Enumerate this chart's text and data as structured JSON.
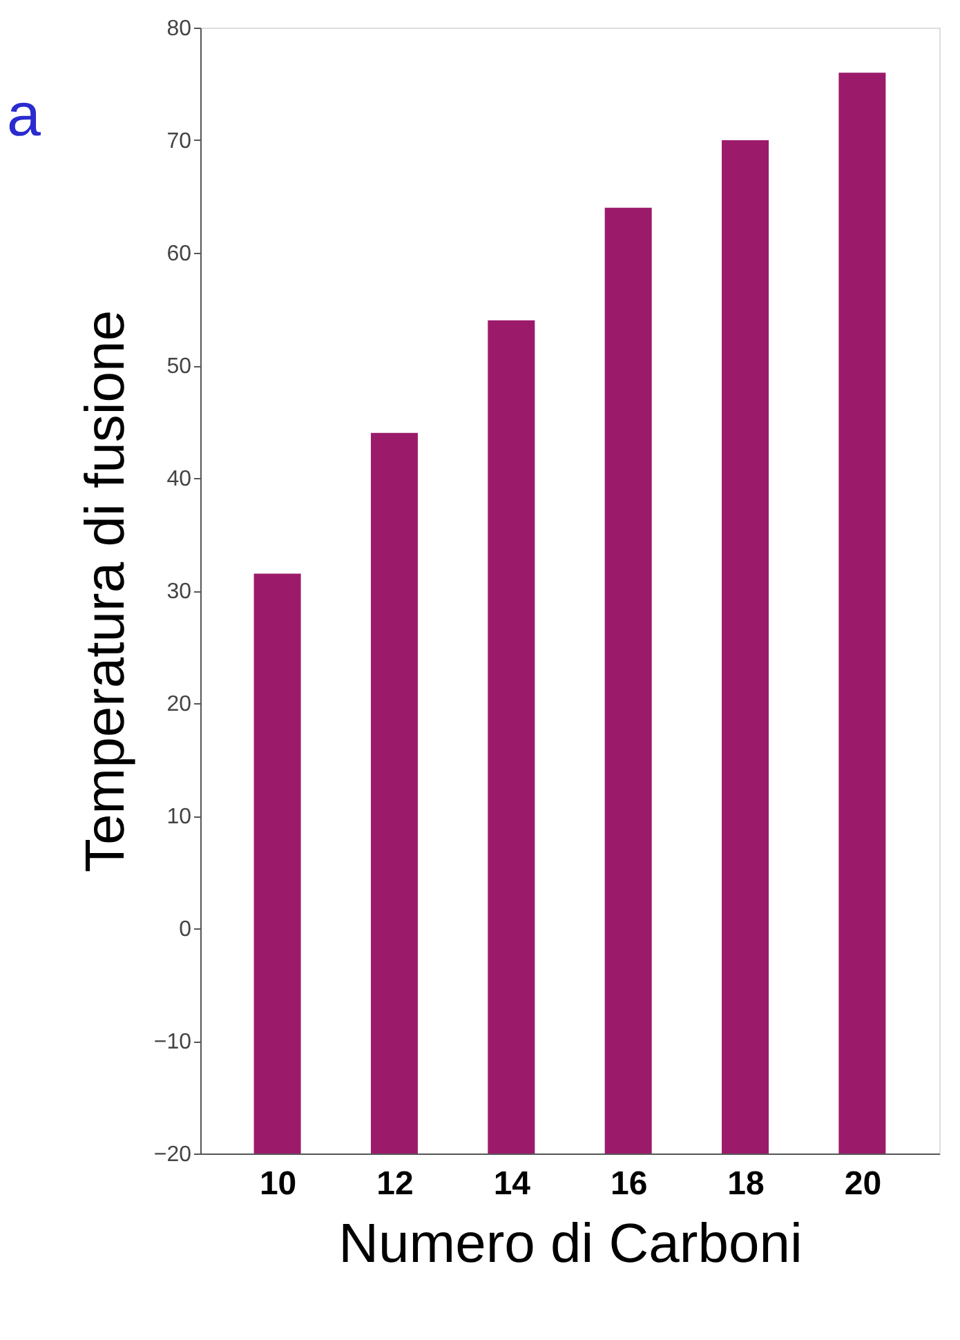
{
  "chart_data": {
    "type": "bar",
    "xlabel": "Numero di Carboni",
    "ylabel": "Temperatura di fusione",
    "annotations": [
      "a"
    ],
    "categories": [
      "10",
      "12",
      "14",
      "16",
      "18",
      "20"
    ],
    "base": [
      -20,
      -20,
      -20,
      -20,
      -20,
      -20
    ],
    "values": [
      51.5,
      64,
      74,
      84,
      90,
      96
    ],
    "color": "#9b1b6a",
    "ylim": [
      -20,
      80
    ],
    "yticks": [
      -20,
      -10,
      0,
      10,
      20,
      30,
      40,
      50,
      60,
      70,
      80
    ],
    "grid": false
  }
}
